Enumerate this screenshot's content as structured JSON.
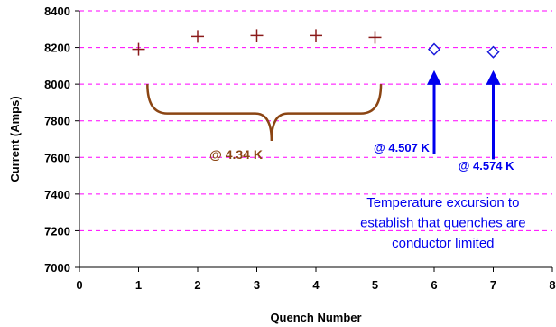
{
  "chart_data": {
    "type": "scatter",
    "xlabel": "Quench Number",
    "ylabel": "Current (Amps)",
    "xlim": [
      0,
      8
    ],
    "ylim": [
      7000,
      8400
    ],
    "x_ticks": [
      "0",
      "1",
      "2",
      "3",
      "4",
      "5",
      "6",
      "7",
      "8"
    ],
    "y_ticks": [
      "7000",
      "7200",
      "7400",
      "7600",
      "7800",
      "8000",
      "8200",
      "8400"
    ],
    "grid": "horizontal-dashed",
    "series": [
      {
        "marker": "plus",
        "color": "#8b1a1a",
        "points": [
          {
            "x": 1,
            "y": 8190
          },
          {
            "x": 2,
            "y": 8260
          },
          {
            "x": 3,
            "y": 8265
          },
          {
            "x": 4,
            "y": 8265
          },
          {
            "x": 5,
            "y": 8255
          }
        ]
      },
      {
        "marker": "diamond",
        "color": "#1a1adb",
        "points": [
          {
            "x": 6,
            "y": 8190
          },
          {
            "x": 7,
            "y": 8175
          }
        ]
      }
    ],
    "annotations": {
      "brace_label": "@ 4.34 K",
      "brace_color": "#8b4513",
      "arrow_color": "#0000ee",
      "arrow_label_6": "@ 4.507 K",
      "arrow_label_7": "@ 4.574 K",
      "note_lines": [
        "Temperature excursion to",
        "establish that quenches are",
        "conductor limited"
      ]
    }
  }
}
